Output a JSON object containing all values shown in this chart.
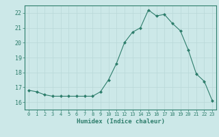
{
  "x": [
    0,
    1,
    2,
    3,
    4,
    5,
    6,
    7,
    8,
    9,
    10,
    11,
    12,
    13,
    14,
    15,
    16,
    17,
    18,
    19,
    20,
    21,
    22,
    23
  ],
  "y": [
    16.8,
    16.7,
    16.5,
    16.4,
    16.4,
    16.4,
    16.4,
    16.4,
    16.4,
    16.7,
    17.5,
    18.6,
    20.0,
    20.7,
    21.0,
    22.2,
    21.8,
    21.9,
    21.3,
    20.8,
    19.5,
    17.9,
    17.4,
    16.1
  ],
  "xlabel": "Humidex (Indice chaleur)",
  "ylim": [
    15.5,
    22.5
  ],
  "xlim": [
    -0.5,
    23.5
  ],
  "yticks": [
    16,
    17,
    18,
    19,
    20,
    21,
    22
  ],
  "xticks": [
    0,
    1,
    2,
    3,
    4,
    5,
    6,
    7,
    8,
    9,
    10,
    11,
    12,
    13,
    14,
    15,
    16,
    17,
    18,
    19,
    20,
    21,
    22,
    23
  ],
  "line_color": "#2d7d6b",
  "marker_color": "#2d7d6b",
  "bg_color": "#cce8e8",
  "grid_major_color": "#b8d8d8",
  "grid_minor_color": "#d0e8e8",
  "axis_color": "#2d7d6b",
  "label_color": "#2d7d6b",
  "tick_color": "#2d7d6b",
  "font_family": "monospace"
}
